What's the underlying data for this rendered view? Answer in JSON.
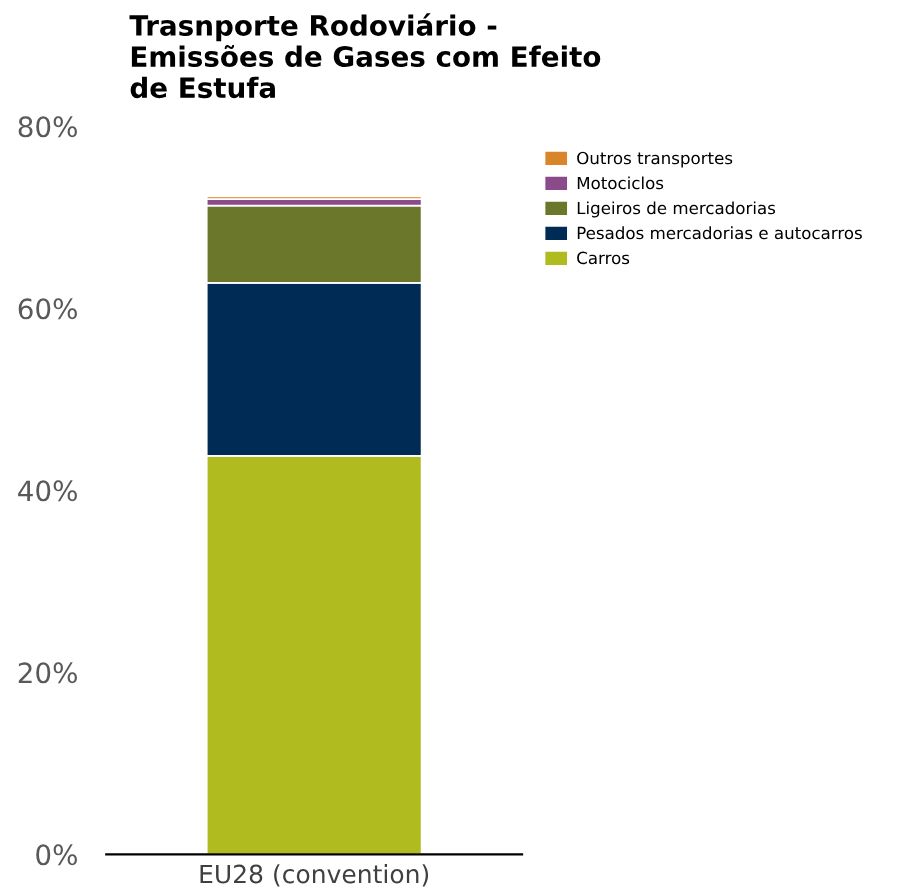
{
  "chart_data": {
    "type": "bar",
    "title": "Trasnporte Rodoviário -\nEmissões de Gases com Efeito\nde Estufa",
    "categories": [
      "EU28 (convention)"
    ],
    "stacked": true,
    "series": [
      {
        "name": "Carros",
        "color": "#afbb1f",
        "values": [
          43.8
        ]
      },
      {
        "name": "Pesados mercadorias e autocarros",
        "color": "#002b54",
        "values": [
          19.0
        ]
      },
      {
        "name": "Ligeiros de mercadorias",
        "color": "#6b772a",
        "values": [
          8.5
        ]
      },
      {
        "name": "Motociclos",
        "color": "#8b4a8a",
        "values": [
          0.7
        ]
      },
      {
        "name": "Outros transportes",
        "color": "#d9862a",
        "values": [
          0.3
        ]
      }
    ],
    "ylim": [
      0,
      80
    ],
    "yticks": [
      {
        "value": 0,
        "label": "0%"
      },
      {
        "value": 20,
        "label": "20%"
      },
      {
        "value": 40,
        "label": "40%"
      },
      {
        "value": 60,
        "label": "60%"
      },
      {
        "value": 80,
        "label": "80%"
      }
    ],
    "grid": false,
    "legend": "right"
  }
}
